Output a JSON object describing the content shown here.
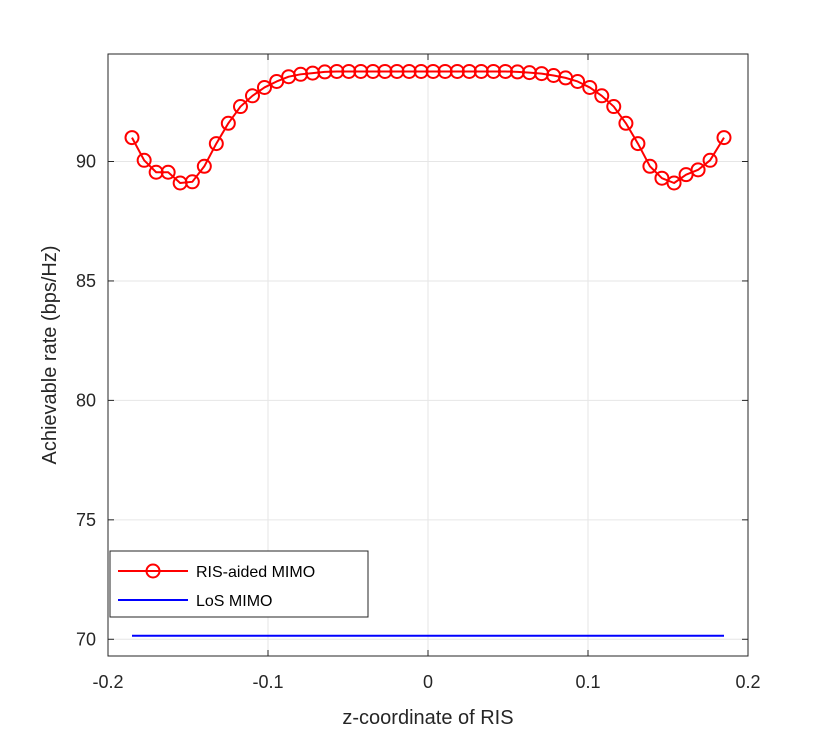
{
  "chart_data": {
    "type": "line",
    "title": "",
    "xlabel": "z-coordinate of RIS",
    "ylabel": "Achievable rate (bps/Hz)",
    "xlim": [
      -0.2,
      0.2
    ],
    "ylim": [
      69.3,
      94.5
    ],
    "xticks": [
      -0.2,
      -0.1,
      0,
      0.1,
      0.2
    ],
    "xtick_labels": [
      "-0.2",
      "-0.1",
      "0",
      "0.1",
      "0.2"
    ],
    "yticks": [
      70,
      75,
      80,
      85,
      90
    ],
    "ytick_labels": [
      "70",
      "75",
      "80",
      "85",
      "90"
    ],
    "grid": true,
    "legend_position": "bottom-left",
    "colors": {
      "ris": "#ff0000",
      "los": "#0000ff",
      "grid": "#e6e6e6",
      "axis": "#262626"
    },
    "series": [
      {
        "name": "RIS-aided MIMO",
        "marker": "circle",
        "x": [
          -0.185,
          -0.1774,
          -0.1699,
          -0.1624,
          -0.1549,
          -0.1473,
          -0.1398,
          -0.1323,
          -0.1248,
          -0.1172,
          -0.1097,
          -0.1022,
          -0.0946,
          -0.0871,
          -0.0796,
          -0.0721,
          -0.0645,
          -0.057,
          -0.0495,
          -0.042,
          -0.0344,
          -0.0269,
          -0.0194,
          -0.0118,
          -0.0043,
          0.0032,
          0.0107,
          0.0183,
          0.0258,
          0.0333,
          0.0409,
          0.0484,
          0.0559,
          0.0634,
          0.071,
          0.0785,
          0.086,
          0.0935,
          0.1011,
          0.1086,
          0.1161,
          0.1237,
          0.1312,
          0.1387,
          0.1462,
          0.1538,
          0.1613,
          0.1688,
          0.1763,
          0.185
        ],
        "values": [
          91.0,
          90.05,
          89.55,
          89.55,
          89.1,
          89.15,
          89.8,
          90.75,
          91.6,
          92.3,
          92.75,
          93.1,
          93.35,
          93.55,
          93.65,
          93.7,
          93.75,
          93.77,
          93.77,
          93.77,
          93.77,
          93.77,
          93.77,
          93.77,
          93.77,
          93.77,
          93.77,
          93.77,
          93.77,
          93.77,
          93.77,
          93.77,
          93.75,
          93.72,
          93.68,
          93.6,
          93.5,
          93.35,
          93.1,
          92.75,
          92.3,
          91.6,
          90.75,
          89.8,
          89.3,
          89.1,
          89.45,
          89.65,
          90.05,
          91.0
        ]
      },
      {
        "name": "LoS MIMO",
        "marker": "none",
        "x": [
          -0.185,
          0.185
        ],
        "values": [
          70.15,
          70.15
        ]
      }
    ]
  }
}
